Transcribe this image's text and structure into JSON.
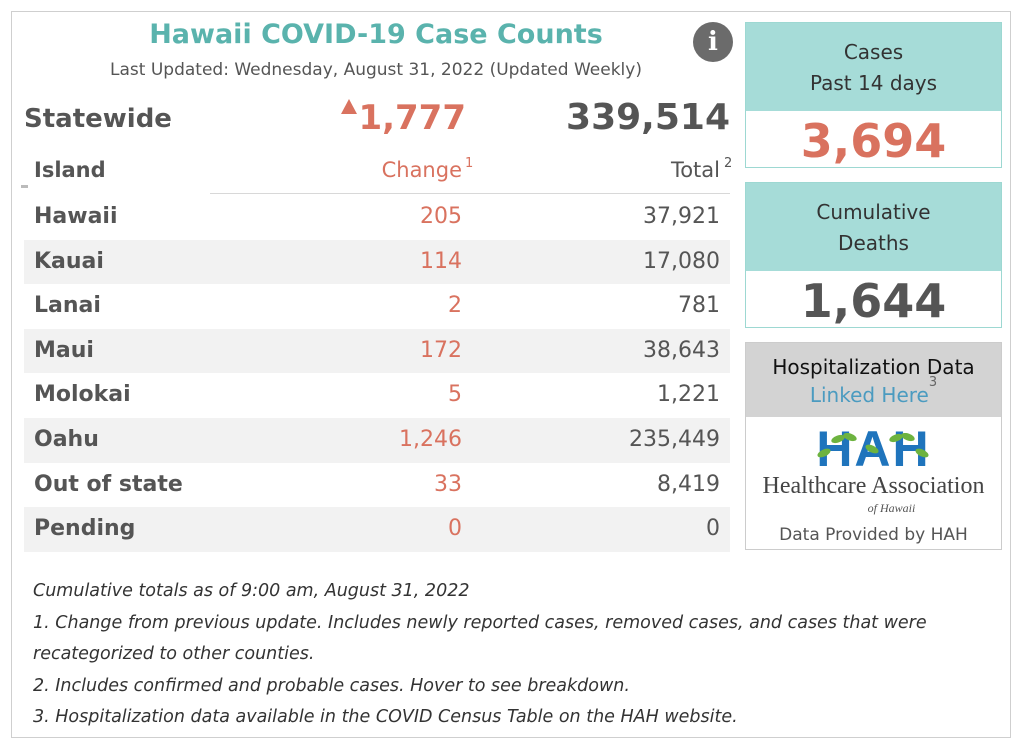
{
  "header": {
    "title": "Hawaii COVID-19 Case Counts",
    "last_updated": "Last Updated: Wednesday, August 31, 2022 (Updated Weekly)",
    "info_icon": "i"
  },
  "statewide": {
    "label": "Statewide",
    "change": "1,777",
    "total": "339,514"
  },
  "table": {
    "headers": {
      "island": "Island",
      "change": "Change",
      "total": "Total"
    },
    "superscripts": {
      "change": "1",
      "total": "2"
    },
    "rows": [
      {
        "name": "Hawaii",
        "change": "205",
        "total": "37,921"
      },
      {
        "name": "Kauai",
        "change": "114",
        "total": "17,080"
      },
      {
        "name": "Lanai",
        "change": "2",
        "total": "781"
      },
      {
        "name": "Maui",
        "change": "172",
        "total": "38,643"
      },
      {
        "name": "Molokai",
        "change": "5",
        "total": "1,221"
      },
      {
        "name": "Oahu",
        "change": "1,246",
        "total": "235,449"
      },
      {
        "name": "Out of state",
        "change": "33",
        "total": "8,419"
      },
      {
        "name": "Pending",
        "change": "0",
        "total": "0"
      }
    ]
  },
  "cards": {
    "cases": {
      "line1": "Cases",
      "line2": "Past 14 days",
      "value": "3,694"
    },
    "deaths": {
      "line1": "Cumulative",
      "line2": "Deaths",
      "value": "1,644"
    }
  },
  "hospitalization": {
    "title": "Hospitalization Data",
    "link": "Linked Here",
    "sup": "3",
    "logo_letters": "HAH",
    "logo_name": "Healthcare Association",
    "logo_sub": "of Hawaii",
    "provided": "Data Provided by HAH"
  },
  "notes": [
    "Cumulative totals as of 9:00 am, August 31, 2022",
    "1. Change from previous update. Includes newly reported cases, removed cases, and cases that were recategorized to other counties.",
    "2. Includes confirmed and probable cases. Hover to see breakdown.",
    "3. Hospitalization data available in the COVID Census Table on the HAH website."
  ],
  "colors": {
    "title": "#5ab3ad",
    "change": "#d9725f",
    "card_header": "#a6dcd8",
    "link": "#4b9bc0",
    "hah_blue": "#1f74bc",
    "leaf_green": "#6db33f"
  }
}
